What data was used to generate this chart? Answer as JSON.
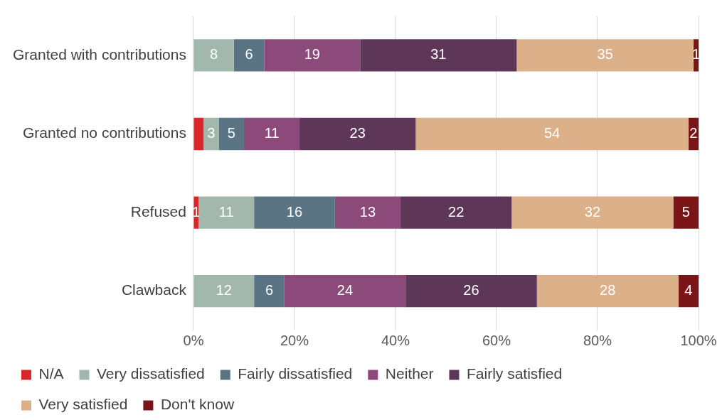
{
  "chart_data": {
    "type": "bar",
    "orientation": "horizontal",
    "stacked": true,
    "categories": [
      "Granted with contributions",
      "Granted no contributions",
      "Refused",
      "Clawback"
    ],
    "series": [
      {
        "name": "N/A",
        "color": "#d9262b",
        "values": [
          null,
          2,
          1,
          null
        ],
        "value_labels": [
          null,
          null,
          "1",
          null
        ]
      },
      {
        "name": "Very dissatisfied",
        "color": "#a3b8ad",
        "values": [
          8,
          3,
          11,
          12
        ],
        "value_labels": [
          "8",
          "3",
          "11",
          "12"
        ]
      },
      {
        "name": "Fairly dissatisfied",
        "color": "#5a7484",
        "values": [
          6,
          5,
          16,
          6
        ],
        "value_labels": [
          "6",
          "5",
          "16",
          "6"
        ]
      },
      {
        "name": "Neither",
        "color": "#8c4a7a",
        "values": [
          19,
          11,
          13,
          24
        ],
        "value_labels": [
          "19",
          "11",
          "13",
          "24"
        ]
      },
      {
        "name": "Fairly satisfied",
        "color": "#5e3758",
        "values": [
          31,
          23,
          22,
          26
        ],
        "value_labels": [
          "31",
          "23",
          "22",
          "26"
        ]
      },
      {
        "name": "Very satisfied",
        "color": "#dcb088",
        "values": [
          35,
          54,
          32,
          28
        ],
        "value_labels": [
          "35",
          "54",
          "32",
          "28"
        ]
      },
      {
        "name": "Don't know",
        "color": "#7a1416",
        "values": [
          1,
          2,
          5,
          4
        ],
        "value_labels": [
          "1",
          "2",
          "5",
          "4"
        ]
      }
    ],
    "xlim": [
      0,
      100
    ],
    "xticks": [
      {
        "value": 0,
        "label": "0%"
      },
      {
        "value": 20,
        "label": "20%"
      },
      {
        "value": 40,
        "label": "40%"
      },
      {
        "value": 60,
        "label": "60%"
      },
      {
        "value": 80,
        "label": "80%"
      },
      {
        "value": 100,
        "label": "100%"
      }
    ],
    "grid": "x",
    "legend": "bottom"
  }
}
